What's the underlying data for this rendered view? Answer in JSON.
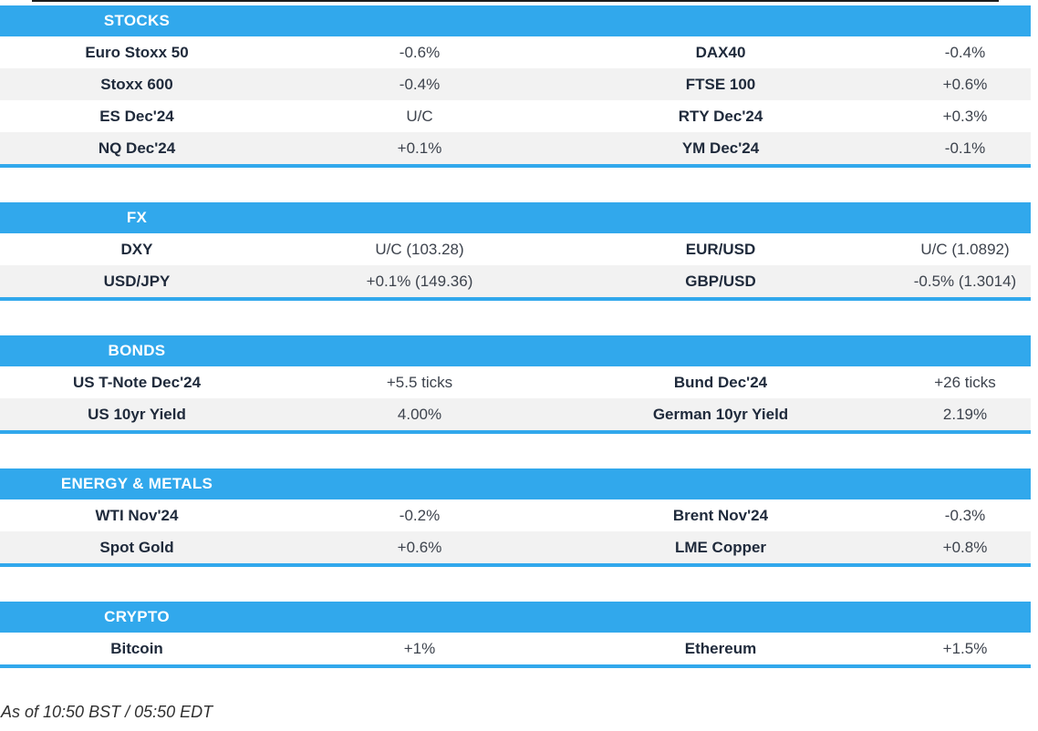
{
  "colors": {
    "accent_blue": "#31a8ec",
    "row_alt_gray": "#f2f2f2",
    "header_text": "#ffffff",
    "label_text": "#1f2a3b",
    "value_text": "#3d434d",
    "top_line": "#1c1c1c"
  },
  "sections": [
    {
      "title": "STOCKS",
      "rows": [
        {
          "label_left": "Euro Stoxx 50",
          "value_left": "-0.6%",
          "label_right": "DAX40",
          "value_right": "-0.4%"
        },
        {
          "label_left": "Stoxx 600",
          "value_left": "-0.4%",
          "label_right": "FTSE 100",
          "value_right": "+0.6%"
        },
        {
          "label_left": "ES Dec'24",
          "value_left": "U/C",
          "label_right": "RTY Dec'24",
          "value_right": "+0.3%"
        },
        {
          "label_left": "NQ Dec'24",
          "value_left": "+0.1%",
          "label_right": "YM Dec'24",
          "value_right": "-0.1%"
        }
      ]
    },
    {
      "title": "FX",
      "rows": [
        {
          "label_left": "DXY",
          "value_left": "U/C (103.28)",
          "label_right": "EUR/USD",
          "value_right": "U/C (1.0892)"
        },
        {
          "label_left": "USD/JPY",
          "value_left": "+0.1% (149.36)",
          "label_right": "GBP/USD",
          "value_right": "-0.5% (1.3014)"
        }
      ]
    },
    {
      "title": "BONDS",
      "rows": [
        {
          "label_left": "US T-Note Dec'24",
          "value_left": "+5.5 ticks",
          "label_right": "Bund Dec'24",
          "value_right": "+26 ticks"
        },
        {
          "label_left": "US 10yr Yield",
          "value_left": "4.00%",
          "label_right": "German 10yr Yield",
          "value_right": "2.19%"
        }
      ]
    },
    {
      "title": "ENERGY & METALS",
      "rows": [
        {
          "label_left": "WTI Nov'24",
          "value_left": "-0.2%",
          "label_right": "Brent Nov'24",
          "value_right": "-0.3%"
        },
        {
          "label_left": "Spot Gold",
          "value_left": "+0.6%",
          "label_right": "LME Copper",
          "value_right": "+0.8%"
        }
      ]
    },
    {
      "title": "CRYPTO",
      "rows": [
        {
          "label_left": "Bitcoin",
          "value_left": "+1%",
          "label_right": "Ethereum",
          "value_right": "+1.5%"
        }
      ]
    }
  ],
  "footer": {
    "timestamp": "As of 10:50 BST / 05:50 EDT"
  }
}
